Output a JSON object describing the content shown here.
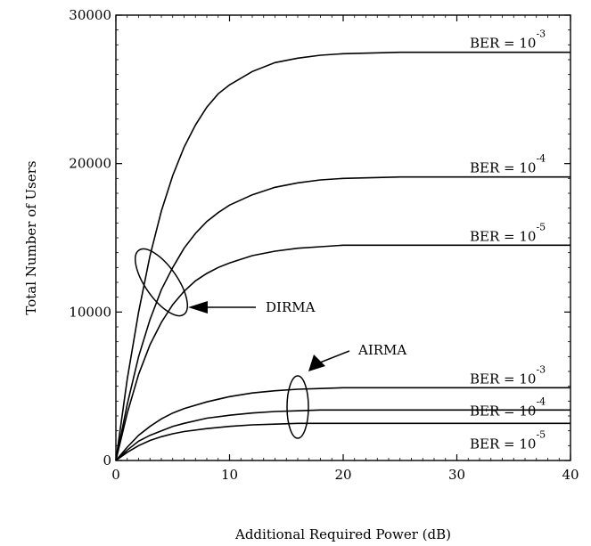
{
  "chart_data": {
    "type": "line",
    "title": "",
    "xlabel": "Additional Required Power (dB)",
    "ylabel": "Total Number of Users",
    "xlim": [
      0,
      40
    ],
    "ylim": [
      0,
      30000
    ],
    "xticks": [
      "0",
      "10",
      "20",
      "30",
      "40"
    ],
    "yticks": [
      "0",
      "10000",
      "20000",
      "30000"
    ],
    "grid": false,
    "legend": "none",
    "series": [
      {
        "name": "BER = 10^-3",
        "group": "DIRMA",
        "label_prefix": "BER = 10",
        "label_exp": "-3",
        "x": [
          0,
          1,
          2,
          3,
          4,
          5,
          6,
          7,
          8,
          9,
          10,
          12,
          14,
          16,
          18,
          20,
          25,
          30,
          35,
          40
        ],
        "y": [
          0,
          5500,
          10000,
          13800,
          16800,
          19200,
          21100,
          22600,
          23800,
          24700,
          25300,
          26200,
          26800,
          27100,
          27300,
          27400,
          27500,
          27500,
          27500,
          27500
        ]
      },
      {
        "name": "BER = 10^-4",
        "group": "DIRMA",
        "label_prefix": "BER = 10",
        "label_exp": "-4",
        "x": [
          0,
          1,
          2,
          3,
          4,
          5,
          6,
          7,
          8,
          9,
          10,
          12,
          14,
          16,
          18,
          20,
          25,
          30,
          35,
          40
        ],
        "y": [
          0,
          3800,
          7000,
          9500,
          11500,
          13000,
          14300,
          15300,
          16100,
          16700,
          17200,
          17900,
          18400,
          18700,
          18900,
          19000,
          19100,
          19100,
          19100,
          19100
        ]
      },
      {
        "name": "BER = 10^-5",
        "group": "DIRMA",
        "label_prefix": "BER = 10",
        "label_exp": "-5",
        "x": [
          0,
          1,
          2,
          3,
          4,
          5,
          6,
          7,
          8,
          9,
          10,
          12,
          14,
          16,
          18,
          20,
          25,
          30,
          35,
          40
        ],
        "y": [
          0,
          3200,
          5800,
          7800,
          9300,
          10500,
          11400,
          12100,
          12600,
          13000,
          13300,
          13800,
          14100,
          14300,
          14400,
          14500,
          14500,
          14500,
          14500,
          14500
        ]
      },
      {
        "name": "BER = 10^-3",
        "group": "AIRMA",
        "label_prefix": "BER = 10",
        "label_exp": "-3",
        "x": [
          0,
          1,
          2,
          3,
          4,
          5,
          6,
          8,
          10,
          12,
          14,
          16,
          18,
          20,
          25,
          30,
          35,
          40
        ],
        "y": [
          0,
          900,
          1700,
          2300,
          2800,
          3200,
          3500,
          3950,
          4300,
          4550,
          4700,
          4800,
          4850,
          4900,
          4900,
          4900,
          4900,
          4900
        ]
      },
      {
        "name": "BER = 10^-4",
        "group": "AIRMA",
        "label_prefix": "BER = 10",
        "label_exp": "-4",
        "x": [
          0,
          1,
          2,
          3,
          4,
          5,
          6,
          8,
          10,
          12,
          14,
          16,
          18,
          20,
          25,
          30,
          35,
          40
        ],
        "y": [
          0,
          700,
          1300,
          1700,
          2000,
          2300,
          2500,
          2850,
          3050,
          3200,
          3300,
          3350,
          3400,
          3400,
          3400,
          3400,
          3400,
          3400
        ]
      },
      {
        "name": "BER = 10^-5",
        "group": "AIRMA",
        "label_prefix": "BER = 10",
        "label_exp": "-5",
        "x": [
          0,
          1,
          2,
          3,
          4,
          5,
          6,
          8,
          10,
          12,
          14,
          16,
          18,
          20,
          25,
          30,
          35,
          40
        ],
        "y": [
          0,
          550,
          1000,
          1350,
          1600,
          1800,
          1950,
          2150,
          2300,
          2400,
          2450,
          2500,
          2500,
          2500,
          2500,
          2500,
          2500,
          2500
        ]
      }
    ],
    "annotations": [
      {
        "text": "DIRMA",
        "target_x": 4,
        "target_y": 12000
      },
      {
        "text": "AIRMA",
        "target_x": 16,
        "target_y": 3600
      }
    ]
  }
}
